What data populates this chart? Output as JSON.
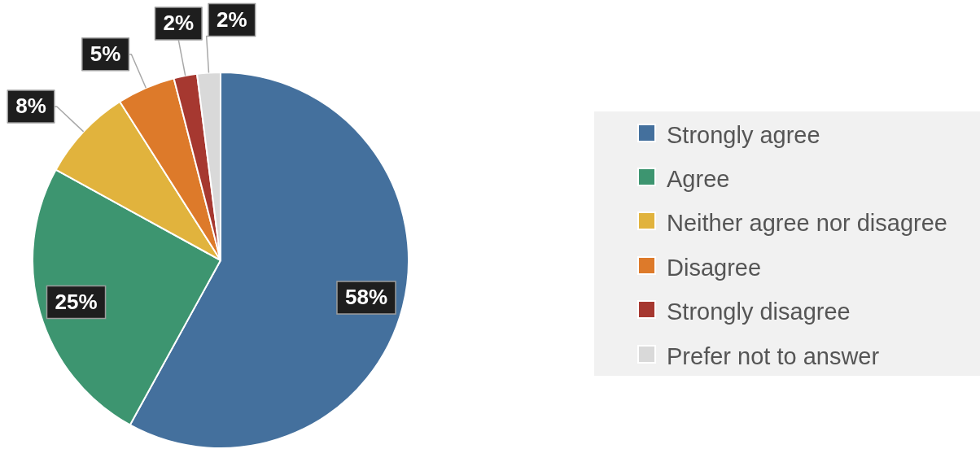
{
  "chart_data": {
    "type": "pie",
    "categories": [
      "Strongly agree",
      "Agree",
      "Neither agree nor disagree",
      "Disagree",
      "Strongly disagree",
      "Prefer not to answer"
    ],
    "values": [
      58,
      25,
      8,
      5,
      2,
      2
    ],
    "colors": [
      "#44709d",
      "#3d9570",
      "#e1b33d",
      "#dd7a2a",
      "#a63830",
      "#d9d9d9"
    ],
    "value_labels": [
      "58%",
      "25%",
      "8%",
      "5%",
      "2%",
      "2%"
    ],
    "legend": "right"
  }
}
